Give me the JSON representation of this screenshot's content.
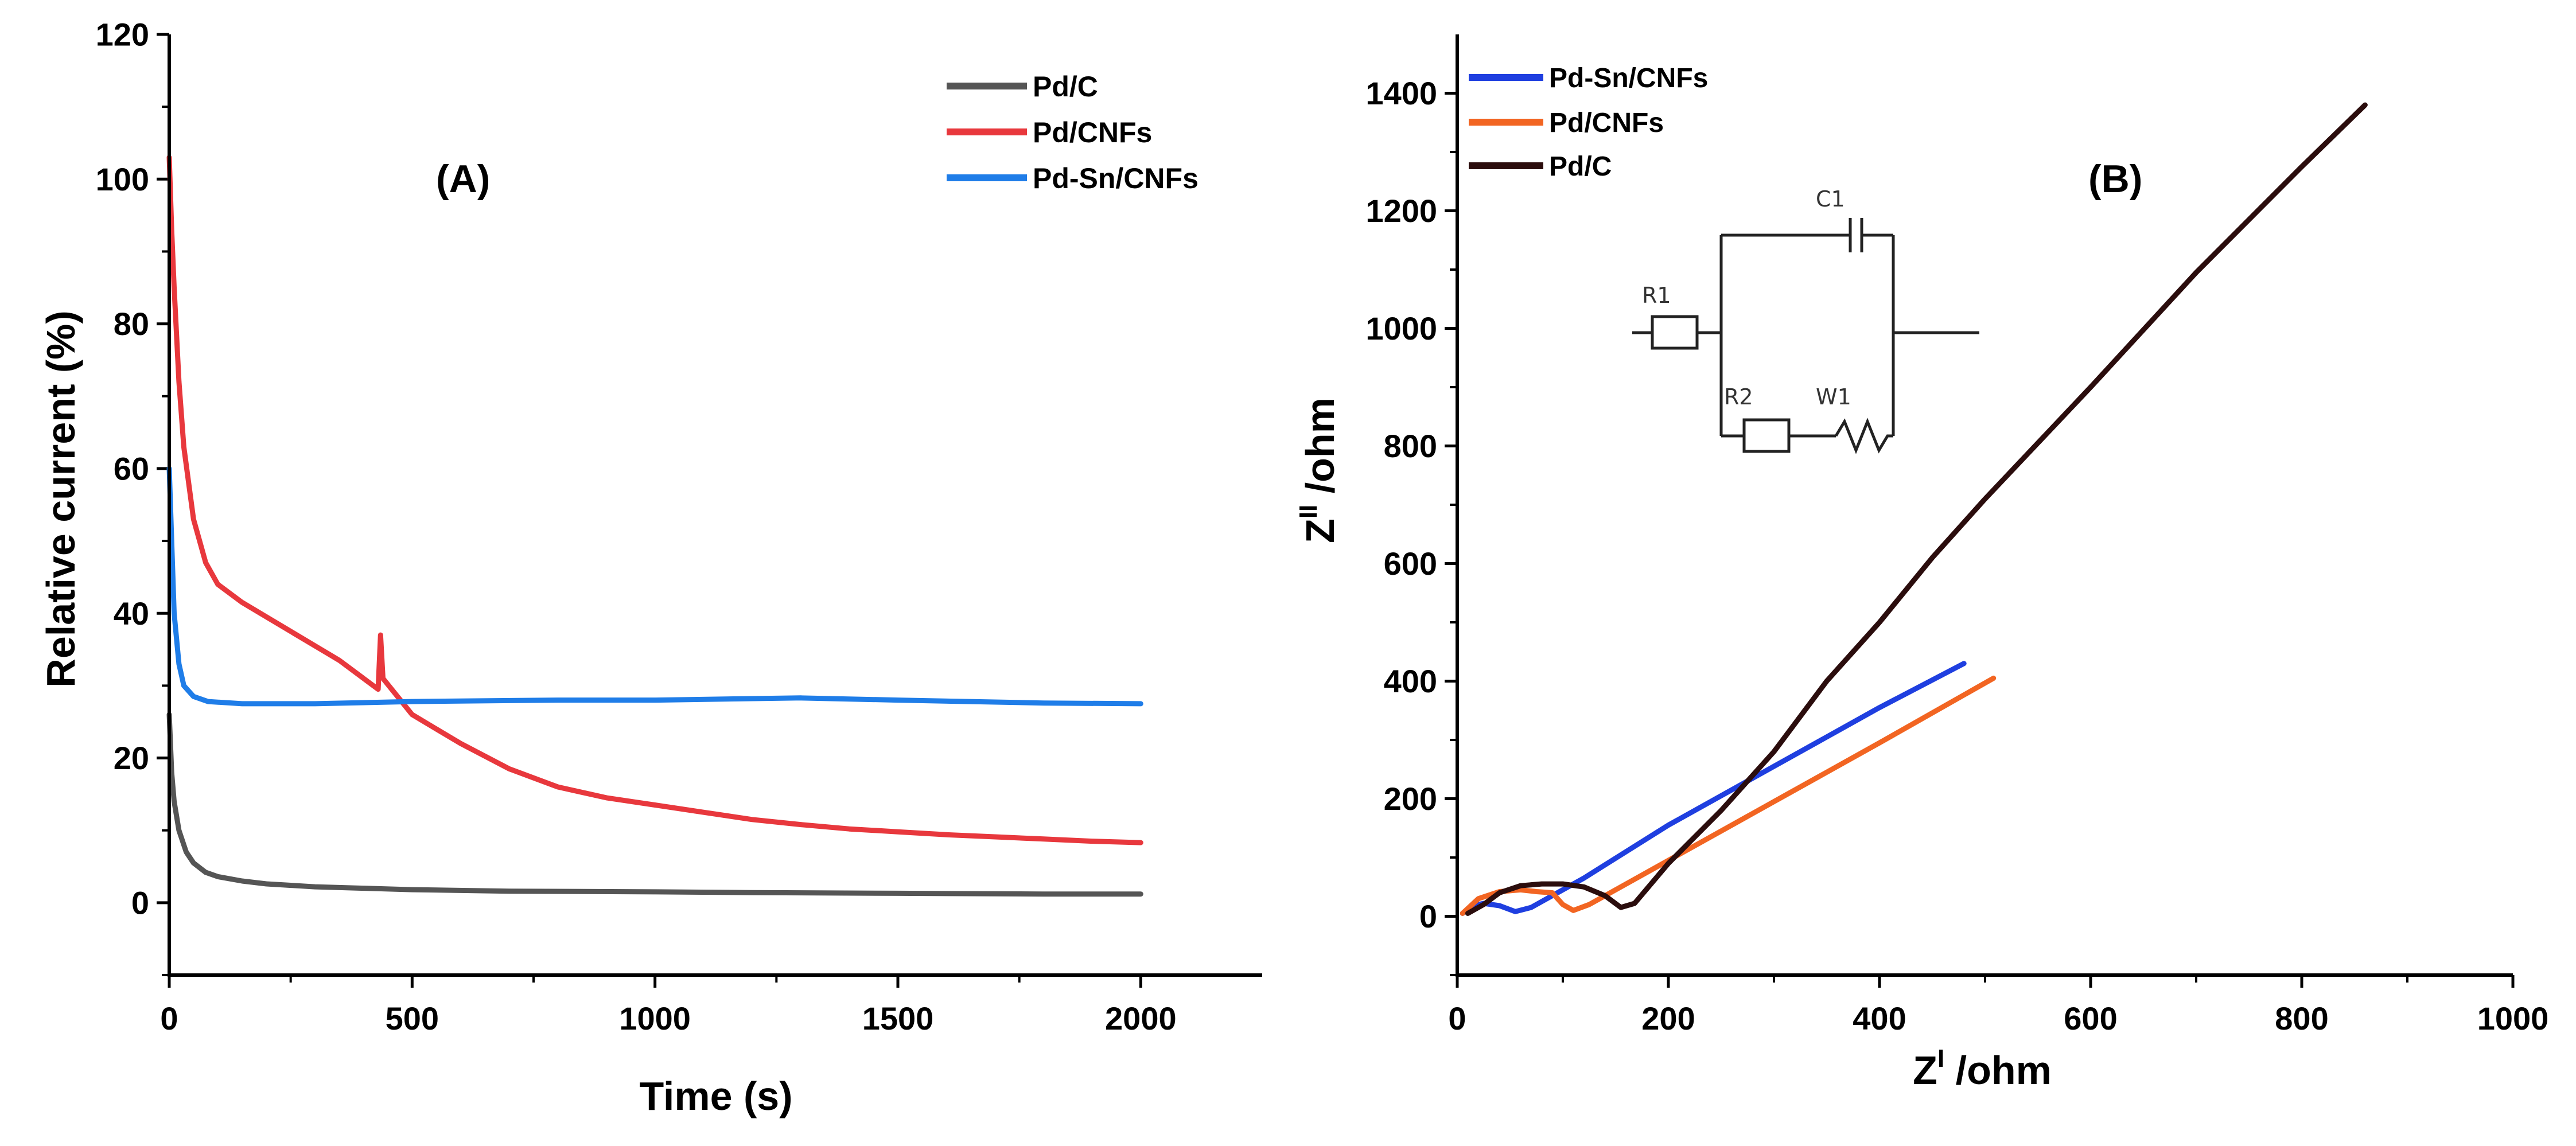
{
  "chart_data": [
    {
      "type": "line",
      "panel_label": "(A)",
      "title": "",
      "xlabel": "Time (s)",
      "ylabel": "Relative current (%)",
      "xlim": [
        0,
        2250
      ],
      "ylim": [
        -10,
        120
      ],
      "x_ticks": [
        0,
        500,
        1000,
        1500,
        2000
      ],
      "y_ticks": [
        0,
        20,
        40,
        60,
        80,
        100,
        120
      ],
      "legend_position": "top-right",
      "series": [
        {
          "name": "Pd/C",
          "color": "#555555",
          "points": [
            [
              0,
              26
            ],
            [
              5,
              18
            ],
            [
              10,
              14
            ],
            [
              20,
              10
            ],
            [
              35,
              7
            ],
            [
              50,
              5.5
            ],
            [
              75,
              4.2
            ],
            [
              100,
              3.6
            ],
            [
              150,
              3.0
            ],
            [
              200,
              2.6
            ],
            [
              300,
              2.2
            ],
            [
              400,
              2.0
            ],
            [
              500,
              1.8
            ],
            [
              700,
              1.6
            ],
            [
              1000,
              1.5
            ],
            [
              1200,
              1.4
            ],
            [
              1500,
              1.3
            ],
            [
              1800,
              1.2
            ],
            [
              2000,
              1.2
            ]
          ]
        },
        {
          "name": "Pd/CNFs",
          "color": "#e8383d",
          "points": [
            [
              0,
              103
            ],
            [
              5,
              93
            ],
            [
              10,
              85
            ],
            [
              20,
              72
            ],
            [
              30,
              63
            ],
            [
              50,
              53
            ],
            [
              75,
              47
            ],
            [
              100,
              44
            ],
            [
              150,
              41.5
            ],
            [
              200,
              39.5
            ],
            [
              250,
              37.5
            ],
            [
              300,
              35.5
            ],
            [
              350,
              33.5
            ],
            [
              400,
              31
            ],
            [
              430,
              29.5
            ],
            [
              435,
              37
            ],
            [
              440,
              31
            ],
            [
              470,
              28.5
            ],
            [
              500,
              26
            ],
            [
              600,
              22
            ],
            [
              700,
              18.5
            ],
            [
              800,
              16
            ],
            [
              900,
              14.5
            ],
            [
              1000,
              13.5
            ],
            [
              1100,
              12.5
            ],
            [
              1200,
              11.5
            ],
            [
              1300,
              10.8
            ],
            [
              1400,
              10.2
            ],
            [
              1500,
              9.8
            ],
            [
              1600,
              9.4
            ],
            [
              1700,
              9.1
            ],
            [
              1800,
              8.8
            ],
            [
              1900,
              8.5
            ],
            [
              2000,
              8.3
            ]
          ]
        },
        {
          "name": "Pd-Sn/CNFs",
          "color": "#1f7de8",
          "points": [
            [
              0,
              60
            ],
            [
              5,
              50
            ],
            [
              10,
              40
            ],
            [
              20,
              33
            ],
            [
              30,
              30
            ],
            [
              50,
              28.5
            ],
            [
              80,
              27.8
            ],
            [
              150,
              27.5
            ],
            [
              300,
              27.5
            ],
            [
              500,
              27.8
            ],
            [
              800,
              28
            ],
            [
              1000,
              28
            ],
            [
              1300,
              28.3
            ],
            [
              1500,
              28
            ],
            [
              1800,
              27.6
            ],
            [
              2000,
              27.5
            ]
          ]
        }
      ]
    },
    {
      "type": "line",
      "panel_label": "(B)",
      "title": "",
      "xlabel_main": "Z",
      "xlabel_sup": "I",
      "xlabel_unit": " /ohm",
      "ylabel_main": "Z",
      "ylabel_sup": "II",
      "ylabel_unit": " /ohm",
      "xlim": [
        0,
        1000
      ],
      "ylim": [
        -100,
        1500
      ],
      "x_ticks": [
        0,
        200,
        400,
        600,
        800,
        1000
      ],
      "y_ticks": [
        0,
        200,
        400,
        600,
        800,
        1000,
        1200,
        1400
      ],
      "legend_position": "top-left",
      "series": [
        {
          "name": "Pd-Sn/CNFs",
          "color": "#1f3fe0",
          "points": [
            [
              5,
              5
            ],
            [
              15,
              18
            ],
            [
              25,
              22
            ],
            [
              40,
              18
            ],
            [
              55,
              8
            ],
            [
              70,
              15
            ],
            [
              90,
              35
            ],
            [
              120,
              65
            ],
            [
              200,
              155
            ],
            [
              300,
              255
            ],
            [
              400,
              355
            ],
            [
              480,
              430
            ]
          ]
        },
        {
          "name": "Pd/CNFs",
          "color": "#f26522",
          "points": [
            [
              5,
              5
            ],
            [
              20,
              30
            ],
            [
              40,
              42
            ],
            [
              60,
              45
            ],
            [
              75,
              42
            ],
            [
              90,
              40
            ],
            [
              100,
              20
            ],
            [
              110,
              10
            ],
            [
              125,
              20
            ],
            [
              200,
              95
            ],
            [
              300,
              195
            ],
            [
              400,
              295
            ],
            [
              508,
              405
            ]
          ]
        },
        {
          "name": "Pd/C",
          "color": "#2b0d0d",
          "points": [
            [
              10,
              5
            ],
            [
              25,
              20
            ],
            [
              40,
              40
            ],
            [
              60,
              52
            ],
            [
              80,
              55
            ],
            [
              100,
              55
            ],
            [
              120,
              50
            ],
            [
              140,
              35
            ],
            [
              155,
              15
            ],
            [
              168,
              22
            ],
            [
              200,
              90
            ],
            [
              250,
              180
            ],
            [
              300,
              280
            ],
            [
              350,
              400
            ],
            [
              400,
              500
            ],
            [
              450,
              610
            ],
            [
              500,
              710
            ],
            [
              600,
              900
            ],
            [
              700,
              1095
            ],
            [
              800,
              1275
            ],
            [
              860,
              1380
            ]
          ]
        }
      ],
      "circuit_labels": [
        "R1",
        "C1",
        "R2",
        "W1"
      ]
    }
  ]
}
